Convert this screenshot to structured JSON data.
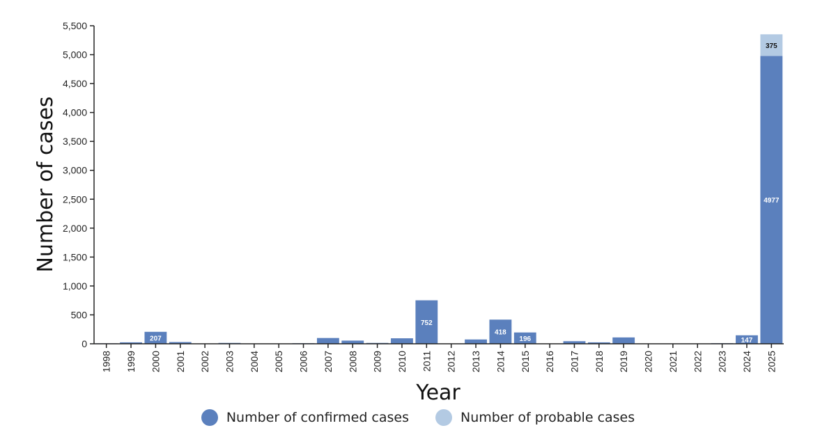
{
  "colors": {
    "confirmed": "#5b80bd",
    "probable": "#b3cae3",
    "axis": "#222222"
  },
  "chart_data": {
    "type": "bar",
    "stacked": true,
    "xlabel": "Year",
    "ylabel": "Number of cases",
    "ylim": [
      0,
      5500
    ],
    "yticks": [
      0,
      500,
      1000,
      1500,
      2000,
      2500,
      3000,
      3500,
      4000,
      4500,
      5000,
      5500
    ],
    "ytick_labels": [
      "0",
      "500",
      "1,000",
      "1,500",
      "2,000",
      "2,500",
      "3,000",
      "3,500",
      "4,000",
      "4,500",
      "5,000",
      "5,500"
    ],
    "categories": [
      "1998",
      "1999",
      "2000",
      "2001",
      "2002",
      "2003",
      "2004",
      "2005",
      "2006",
      "2007",
      "2008",
      "2009",
      "2010",
      "2011",
      "2012",
      "2013",
      "2014",
      "2015",
      "2016",
      "2017",
      "2018",
      "2019",
      "2020",
      "2021",
      "2022",
      "2023",
      "2024",
      "2025"
    ],
    "series": [
      {
        "name": "Number of confirmed cases",
        "values": [
          8,
          25,
          207,
          30,
          0,
          15,
          0,
          0,
          10,
          100,
          55,
          15,
          95,
          752,
          5,
          75,
          418,
          196,
          5,
          45,
          25,
          110,
          5,
          0,
          0,
          10,
          147,
          4977
        ],
        "labels": [
          "",
          "",
          "207",
          "",
          "",
          "",
          "",
          "",
          "",
          "",
          "",
          "",
          "",
          "752",
          "",
          "",
          "418",
          "196",
          "",
          "",
          "",
          "",
          "",
          "",
          "",
          "",
          "147",
          "4977"
        ]
      },
      {
        "name": "Number of probable cases",
        "values": [
          0,
          0,
          0,
          0,
          0,
          0,
          0,
          0,
          0,
          0,
          0,
          0,
          0,
          0,
          0,
          0,
          0,
          0,
          0,
          0,
          0,
          0,
          0,
          0,
          0,
          0,
          0,
          375
        ],
        "labels": [
          "",
          "",
          "",
          "",
          "",
          "",
          "",
          "",
          "",
          "",
          "",
          "",
          "",
          "",
          "",
          "",
          "",
          "",
          "",
          "",
          "",
          "",
          "",
          "",
          "",
          "",
          "",
          "375"
        ]
      }
    ],
    "legend_position": "bottom"
  }
}
